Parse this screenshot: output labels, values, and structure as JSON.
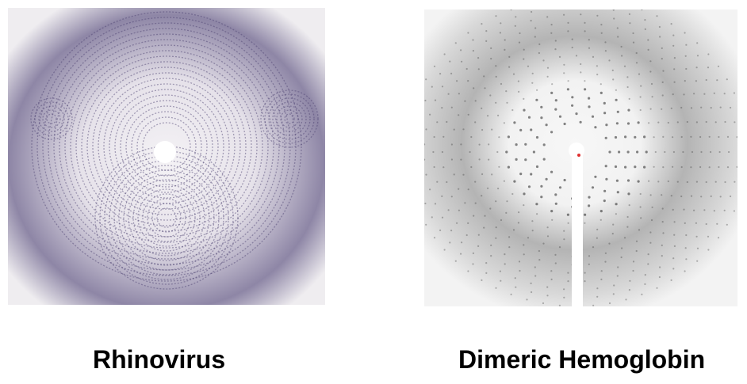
{
  "panels": [
    {
      "id": "rhinovirus",
      "caption": "Rhinovirus",
      "colors": {
        "background": "#e9e6ec",
        "rings": "#4a3f6e",
        "halo": "#6f6690"
      }
    },
    {
      "id": "dimeric-hemoglobin",
      "caption": "Dimeric Hemoglobin",
      "colors": {
        "background": "#f4f4f4",
        "spots": "#222222",
        "haze": "#9a9a9a",
        "beam": "#ffffff",
        "center_dot": "#e03030"
      }
    }
  ]
}
